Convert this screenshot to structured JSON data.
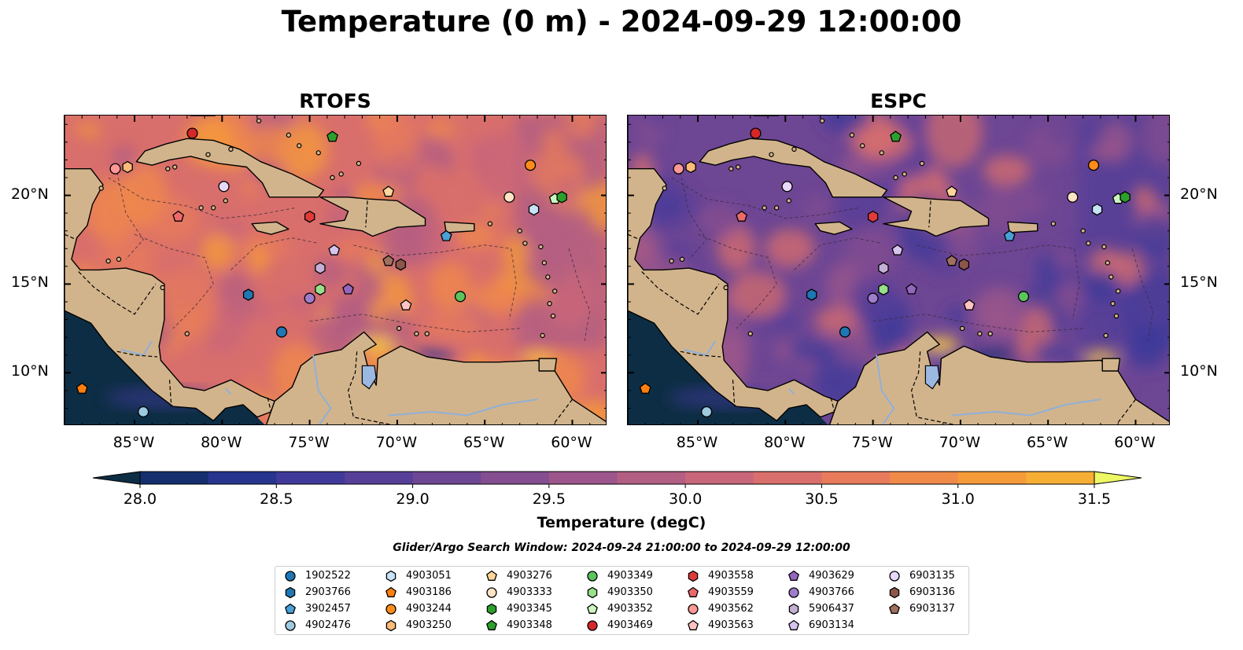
{
  "title": "Temperature (0 m) - 2024-09-29 12:00:00",
  "panels": [
    {
      "title": "RTOFS",
      "tone": "warm"
    },
    {
      "title": "ESPC",
      "tone": "cool"
    }
  ],
  "lat_labels": [
    "20°N",
    "15°N",
    "10°N"
  ],
  "lon_labels": [
    "85°W",
    "80°W",
    "75°W",
    "70°W",
    "65°W",
    "60°W"
  ],
  "map_extent": {
    "lon": [
      -89,
      -58
    ],
    "lat": [
      7,
      24.5
    ]
  },
  "colorbar": {
    "label": "Temperature (degC)",
    "ticks": [
      "28.0",
      "28.5",
      "29.0",
      "29.5",
      "30.0",
      "30.5",
      "31.0",
      "31.5"
    ],
    "range": [
      28.0,
      31.5
    ],
    "step": 0.25,
    "colors": [
      "#0d2d44",
      "#152f6e",
      "#27358f",
      "#3f3a99",
      "#563f98",
      "#6d4694",
      "#844e90",
      "#9c568b",
      "#b35e83",
      "#c8667a",
      "#d96f6c",
      "#e77b5c",
      "#f08a49",
      "#f59b39",
      "#f7ae35",
      "#f5c842",
      "#eef764"
    ]
  },
  "window_text": "Glider/Argo Search Window: 2024-09-24 21:00:00 to 2024-09-29 12:00:00",
  "land_color": "#d2b48c",
  "legend": [
    {
      "id": "1902522",
      "shape": "circle",
      "color": "#1f77b4"
    },
    {
      "id": "2903766",
      "shape": "hexagon",
      "color": "#1f77b4"
    },
    {
      "id": "3902457",
      "shape": "pentagon",
      "color": "#4aa0d8"
    },
    {
      "id": "4902476",
      "shape": "circle",
      "color": "#9ecae1"
    },
    {
      "id": "4903051",
      "shape": "hexagon",
      "color": "#c6e3f7"
    },
    {
      "id": "4903186",
      "shape": "pentagon",
      "color": "#ff7f0e"
    },
    {
      "id": "4903244",
      "shape": "circle",
      "color": "#ff8c1a"
    },
    {
      "id": "4903250",
      "shape": "hexagon",
      "color": "#ffbb78"
    },
    {
      "id": "4903276",
      "shape": "pentagon",
      "color": "#ffd59c"
    },
    {
      "id": "4903333",
      "shape": "circle",
      "color": "#ffe3c4"
    },
    {
      "id": "4903345",
      "shape": "hexagon",
      "color": "#2ca02c"
    },
    {
      "id": "4903348",
      "shape": "pentagon",
      "color": "#2ca02c"
    },
    {
      "id": "4903349",
      "shape": "circle",
      "color": "#5cc45c"
    },
    {
      "id": "4903350",
      "shape": "hexagon",
      "color": "#98df8a"
    },
    {
      "id": "4903352",
      "shape": "pentagon",
      "color": "#ccf5c0"
    },
    {
      "id": "4903469",
      "shape": "circle",
      "color": "#d62728"
    },
    {
      "id": "4903558",
      "shape": "hexagon",
      "color": "#e03a3a"
    },
    {
      "id": "4903559",
      "shape": "pentagon",
      "color": "#ee6a6a"
    },
    {
      "id": "4903562",
      "shape": "circle",
      "color": "#ff9896"
    },
    {
      "id": "4903563",
      "shape": "pentagon",
      "color": "#ffc4c2"
    },
    {
      "id": "4903629",
      "shape": "pentagon",
      "color": "#9467bd"
    },
    {
      "id": "4903766",
      "shape": "circle",
      "color": "#a07ccc"
    },
    {
      "id": "5906437",
      "shape": "hexagon",
      "color": "#c5b0d5"
    },
    {
      "id": "6903134",
      "shape": "pentagon",
      "color": "#d6c4ef"
    },
    {
      "id": "6903135",
      "shape": "circle",
      "color": "#e8d8fa"
    },
    {
      "id": "6903136",
      "shape": "hexagon",
      "color": "#8c564b"
    },
    {
      "id": "6903137",
      "shape": "pentagon",
      "color": "#a0705f"
    }
  ],
  "floats": [
    {
      "id": "4903469",
      "lon": -81.7,
      "lat": 23.5
    },
    {
      "id": "4903348",
      "lon": -73.7,
      "lat": 23.3
    },
    {
      "id": "4903562",
      "lon": -86.1,
      "lat": 21.5
    },
    {
      "id": "4903250",
      "lon": -85.4,
      "lat": 21.6
    },
    {
      "id": "6903135",
      "lon": -79.9,
      "lat": 20.5
    },
    {
      "id": "4903276",
      "lon": -70.5,
      "lat": 20.2
    },
    {
      "id": "4903244",
      "lon": -62.4,
      "lat": 21.7
    },
    {
      "id": "4903333",
      "lon": -63.6,
      "lat": 19.9
    },
    {
      "id": "4903352",
      "lon": -61.0,
      "lat": 19.8
    },
    {
      "id": "4903345",
      "lon": -60.6,
      "lat": 19.9
    },
    {
      "id": "4903051",
      "lon": -62.2,
      "lat": 19.2
    },
    {
      "id": "4903559",
      "lon": -82.5,
      "lat": 18.8
    },
    {
      "id": "4903558",
      "lon": -75.0,
      "lat": 18.8
    },
    {
      "id": "3902457",
      "lon": -67.2,
      "lat": 17.7
    },
    {
      "id": "6903134",
      "lon": -73.6,
      "lat": 16.9
    },
    {
      "id": "6903136",
      "lon": -69.8,
      "lat": 16.1
    },
    {
      "id": "6903137",
      "lon": -70.5,
      "lat": 16.3
    },
    {
      "id": "5906437",
      "lon": -74.4,
      "lat": 15.9
    },
    {
      "id": "4903350",
      "lon": -74.4,
      "lat": 14.7
    },
    {
      "id": "4903629",
      "lon": -72.8,
      "lat": 14.7
    },
    {
      "id": "2903766",
      "lon": -78.5,
      "lat": 14.4
    },
    {
      "id": "4903766",
      "lon": -75.0,
      "lat": 14.2
    },
    {
      "id": "4903349",
      "lon": -66.4,
      "lat": 14.3
    },
    {
      "id": "4903563",
      "lon": -69.5,
      "lat": 13.8
    },
    {
      "id": "1902522",
      "lon": -76.6,
      "lat": 12.3
    },
    {
      "id": "4903186",
      "lon": -88.0,
      "lat": 9.1
    },
    {
      "id": "4902476",
      "lon": -84.5,
      "lat": 7.8
    }
  ]
}
